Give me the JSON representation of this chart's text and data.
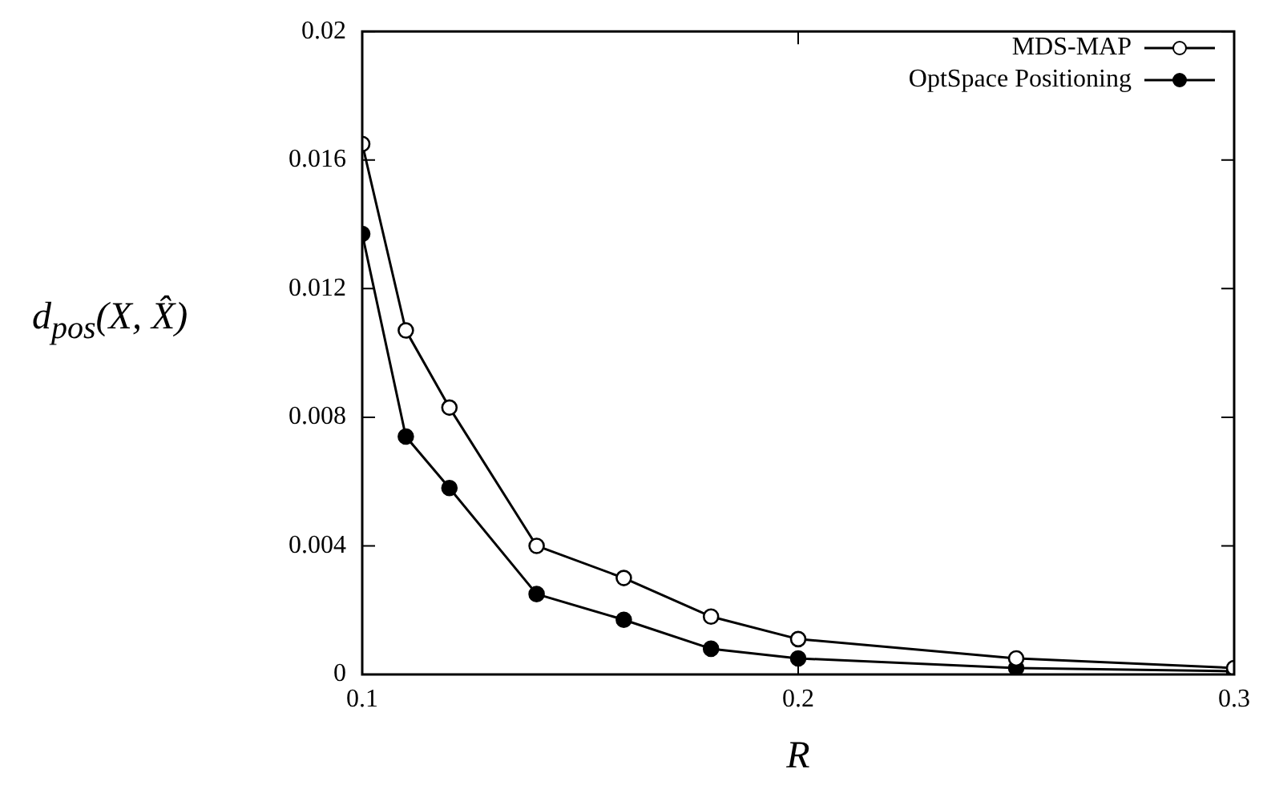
{
  "chart_data": {
    "type": "line",
    "xlabel": "R",
    "ylabel": "d$_{pos}$(X, X̂)",
    "x": [
      0.1,
      0.11,
      0.12,
      0.14,
      0.16,
      0.18,
      0.2,
      0.25,
      0.3
    ],
    "series": [
      {
        "name": "MDS-MAP",
        "color": "#000000",
        "values": [
          0.0165,
          0.0107,
          0.0083,
          0.004,
          0.003,
          0.0018,
          0.0011,
          0.0005,
          0.0002
        ]
      },
      {
        "name": "OptSpace Positioning",
        "color": "#000000",
        "values": [
          0.0137,
          0.0074,
          0.0058,
          0.0025,
          0.0017,
          0.0008,
          0.0005,
          0.0002,
          0.0001
        ]
      }
    ],
    "xlim": [
      0.1,
      0.3
    ],
    "xticks": [
      0.1,
      0.2,
      0.3
    ],
    "ylim": [
      0,
      0.02
    ],
    "yticks": [
      0,
      0.004,
      0.008,
      0.012,
      0.016,
      0.02
    ],
    "grid": false,
    "legend": "top right",
    "marker": "circle",
    "line_style": "solid"
  }
}
